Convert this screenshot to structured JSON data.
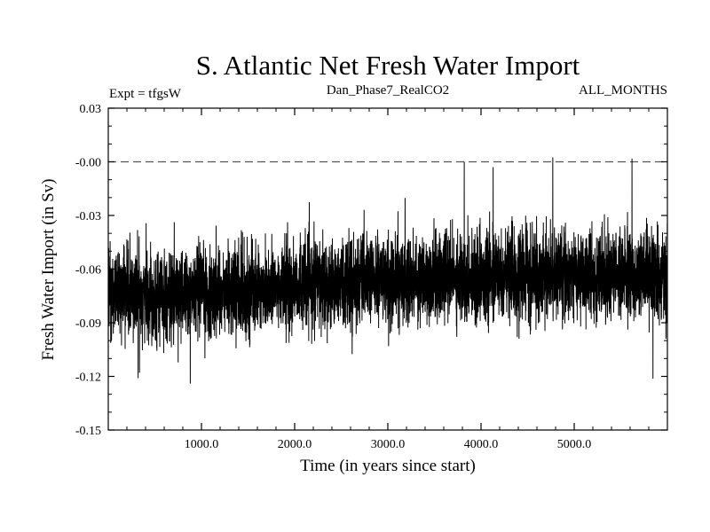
{
  "chart_data": {
    "type": "line",
    "title": "S. Atlantic Net Fresh Water Import",
    "subtitle_left": "Expt = tfgsW",
    "subtitle_center": "Dan_Phase7_RealCO2",
    "subtitle_right": "ALL_MONTHS",
    "xlabel": "Time (in years since start)",
    "ylabel": "Fresh Water Import (in Sv)",
    "xlim": [
      0,
      6000
    ],
    "ylim": [
      -0.15,
      0.03
    ],
    "x_ticks": [
      1000,
      2000,
      3000,
      4000,
      5000
    ],
    "x_tick_labels": [
      "1000.0",
      "2000.0",
      "3000.0",
      "4000.0",
      "5000.0"
    ],
    "y_ticks": [
      0.03,
      0.0,
      -0.03,
      -0.06,
      -0.09,
      -0.12,
      -0.15
    ],
    "y_tick_labels": [
      "0.03",
      "-0.00",
      "-0.03",
      "-0.06",
      "-0.09",
      "-0.12",
      "-0.15"
    ],
    "reference_line": {
      "y": 0.0,
      "style": "dashed"
    },
    "series": [
      {
        "name": "Net fresh water import",
        "color": "#000000",
        "description_of_trend": "noisy annual series",
        "anchor_x": [
          0,
          500,
          1000,
          1500,
          2000,
          2500,
          3000,
          3500,
          4000,
          4500,
          5000,
          5500,
          6000
        ],
        "anchor_mean": [
          -0.072,
          -0.075,
          -0.074,
          -0.072,
          -0.069,
          -0.067,
          -0.066,
          -0.065,
          -0.064,
          -0.064,
          -0.063,
          -0.063,
          -0.064
        ],
        "noise_std": 0.012,
        "spikes": [
          {
            "x": 3820,
            "y": 0.0
          },
          {
            "x": 4770,
            "y": 0.0025
          },
          {
            "x": 5620,
            "y": 0.0018
          },
          {
            "x": 4130,
            "y": -0.003
          },
          {
            "x": 880,
            "y": -0.124
          },
          {
            "x": 320,
            "y": -0.121
          }
        ]
      }
    ]
  }
}
